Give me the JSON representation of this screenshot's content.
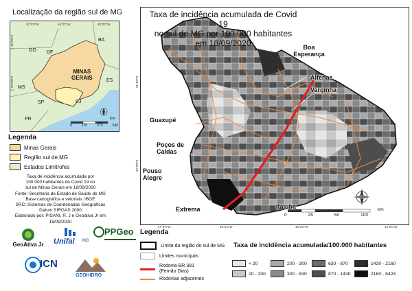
{
  "inset": {
    "title": "Localização da região sul de MG",
    "state_label_line1": "MINAS",
    "state_label_line2": "GERAIS",
    "neighbors": [
      "BA",
      "GO",
      "DF",
      "ES",
      "MS",
      "SP",
      "RJ",
      "PR"
    ],
    "scale_labels": [
      "0",
      "135",
      "270",
      "540"
    ],
    "scale_unit": "Km",
    "coords_top": [
      "52°0'0\"W",
      "46°0'0\"W",
      "40°0'0\"W"
    ],
    "coords_left": [
      "15°0'0\"S",
      "20°0'0\"S"
    ]
  },
  "left_legend": {
    "title": "Legenda",
    "items": [
      {
        "label": "Minas Gerais",
        "color": "#f6d9a0"
      },
      {
        "label": "Região sul de MG",
        "color": "#fff2b3"
      },
      {
        "label": "Estados Limítrofes",
        "color": "#dfeecf"
      }
    ]
  },
  "credits": [
    "Taxa de incidência acumulada por",
    "100.000 habitantes de Covid 19 no",
    "sul de Minas Gerais em 18/09/2020",
    "Fonte: Secretaria de Estado de Saúde de MG",
    "Base cartográfica e vetoriais: IBGE",
    "SRC: Sistemas de Coordenadas Geográficas",
    "Datum SIRGAS 2000",
    "Elaborado por: PISANI, R. J e Geoativa Jr em 19/09/2020"
  ],
  "logos": {
    "geoativa": "GeoAtiva Jr",
    "unifal": "Unifal",
    "unifal_sub": "MG",
    "ppgeo": "PPGeo",
    "icn": "ICN",
    "geohidro": "GEOHIDRO"
  },
  "map": {
    "title_line1": "Taxa de incidência acumulada de Covid 19",
    "title_line2": "no sul de MG por 100.000 habitantes",
    "title_line3": "em 18/09/2020",
    "cities": {
      "boa_esperanca": "Boa Esperança",
      "alfenas": "Alfenas",
      "varginha": "Varginha",
      "guaxupe": "Guaxupé",
      "pocos": "Poços de Caldas",
      "pouso_alegre": "Pouso Alegre",
      "extrema": "Extrema",
      "itajuba": "Itajubá"
    },
    "scale_labels": [
      "0",
      "25",
      "50",
      "100"
    ],
    "scale_unit": "km",
    "coords_bottom": [
      "47°0'0\"W",
      "46°0'0\"W",
      "45°0'0\"W",
      "44°0'0\"W"
    ],
    "coords_left": [
      "21°0'0\"S",
      "22°0'0\"S"
    ]
  },
  "main_legend": {
    "title": "Legenda",
    "items": [
      {
        "label": "Limite da região do sul de MG"
      },
      {
        "label": "Limites municipais"
      },
      {
        "label": "Rodovia BR 381 (Fernão Dias)",
        "color": "#e02020"
      },
      {
        "label": "Rodovias adjacentes",
        "color": "#f0883e"
      }
    ]
  },
  "incidence": {
    "title": "Taxa de incidência acumulada/100.000 habitantes",
    "classes": [
      {
        "label": "< 20",
        "color": "#e6e6e6"
      },
      {
        "label": "20 - 200",
        "color": "#c8c8c8"
      },
      {
        "label": "200 - 300",
        "color": "#a9a9a9"
      },
      {
        "label": "300 - 630",
        "color": "#8a8a8a"
      },
      {
        "label": "630 - 870",
        "color": "#6b6b6b"
      },
      {
        "label": "870 - 1430",
        "color": "#4d4d4d"
      },
      {
        "label": "1430 - 2160",
        "color": "#2e2e2e"
      },
      {
        "label": "2160 - 8424",
        "color": "#0f0f0f"
      }
    ]
  }
}
